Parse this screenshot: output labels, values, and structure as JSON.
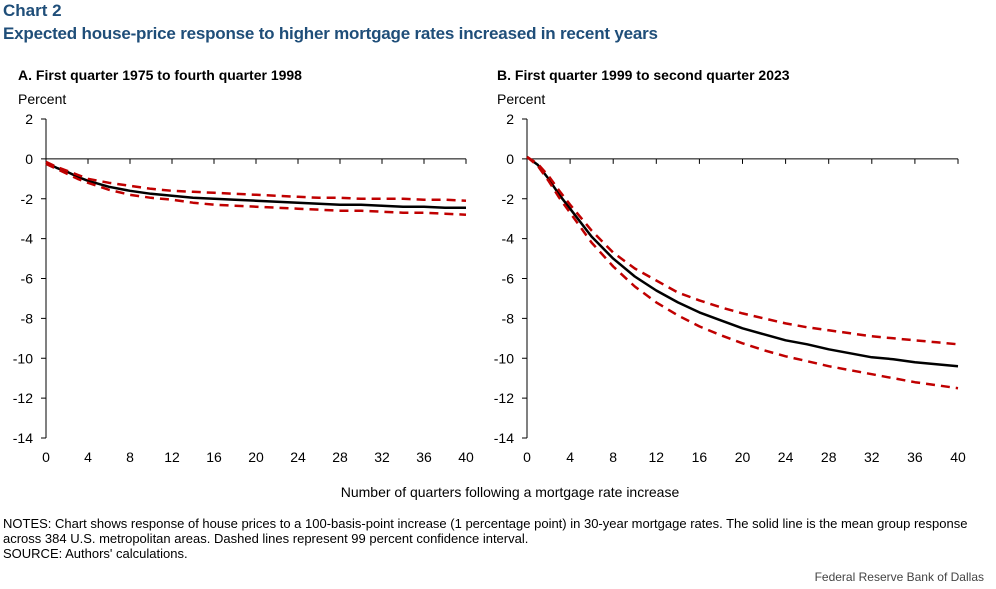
{
  "header": {
    "label": "Chart 2",
    "title": "Expected house-price response to higher mortgage rates increased in recent years"
  },
  "footer": {
    "notes": "NOTES: Chart shows response of house prices to a 100-basis-point increase (1 percentage point) in 30-year mortgage rates. The solid line is the mean group response across 384 U.S. metropolitan areas. Dashed lines represent 99 percent confidence interval.",
    "source": "SOURCE: Authors' calculations.",
    "credit": "Federal Reserve Bank of Dallas"
  },
  "shared_xlabel": "Number of quarters following a mortgage rate increase",
  "colors": {
    "mean": "#000000",
    "ci": "#c00000",
    "title": "#1f4e79"
  },
  "chart_data": [
    {
      "type": "line",
      "title": "A. First quarter 1975 to fourth quarter 1998",
      "ylabel": "Percent",
      "xlabel": "",
      "xlim": [
        0,
        40
      ],
      "ylim": [
        -14,
        2
      ],
      "xticks": [
        0,
        4,
        8,
        12,
        16,
        20,
        24,
        28,
        32,
        36,
        40
      ],
      "yticks": [
        2,
        0,
        -2,
        -4,
        -6,
        -8,
        -10,
        -12,
        -14
      ],
      "grid": false,
      "x": [
        0,
        1,
        2,
        3,
        4,
        6,
        8,
        10,
        12,
        14,
        16,
        18,
        20,
        22,
        24,
        26,
        28,
        30,
        32,
        34,
        36,
        38,
        40
      ],
      "series": [
        {
          "role": "mean",
          "style": "solid",
          "values": [
            -0.2,
            -0.45,
            -0.65,
            -0.9,
            -1.1,
            -1.4,
            -1.6,
            -1.75,
            -1.85,
            -1.95,
            -2.0,
            -2.05,
            -2.1,
            -2.15,
            -2.2,
            -2.25,
            -2.3,
            -2.3,
            -2.35,
            -2.4,
            -2.4,
            -2.45,
            -2.45
          ]
        },
        {
          "role": "upper",
          "style": "dashed",
          "values": [
            -0.15,
            -0.4,
            -0.6,
            -0.8,
            -1.0,
            -1.2,
            -1.35,
            -1.5,
            -1.6,
            -1.65,
            -1.7,
            -1.75,
            -1.8,
            -1.85,
            -1.9,
            -1.95,
            -1.95,
            -2.0,
            -2.0,
            -2.0,
            -2.05,
            -2.05,
            -2.1
          ]
        },
        {
          "role": "lower",
          "style": "dashed",
          "values": [
            -0.25,
            -0.5,
            -0.75,
            -1.0,
            -1.2,
            -1.55,
            -1.8,
            -1.95,
            -2.05,
            -2.2,
            -2.3,
            -2.35,
            -2.4,
            -2.45,
            -2.5,
            -2.55,
            -2.6,
            -2.6,
            -2.65,
            -2.7,
            -2.7,
            -2.75,
            -2.8
          ]
        }
      ]
    },
    {
      "type": "line",
      "title": "B. First quarter 1999 to second quarter 2023",
      "ylabel": "Percent",
      "xlabel": "",
      "xlim": [
        0,
        40
      ],
      "ylim": [
        -14,
        2
      ],
      "xticks": [
        0,
        4,
        8,
        12,
        16,
        20,
        24,
        28,
        32,
        36,
        40
      ],
      "yticks": [
        2,
        0,
        -2,
        -4,
        -6,
        -8,
        -10,
        -12,
        -14
      ],
      "grid": false,
      "x": [
        0,
        1,
        2,
        3,
        4,
        6,
        8,
        10,
        12,
        14,
        16,
        18,
        20,
        22,
        24,
        26,
        28,
        30,
        32,
        34,
        36,
        38,
        40
      ],
      "series": [
        {
          "role": "mean",
          "style": "solid",
          "values": [
            0.1,
            -0.3,
            -1.0,
            -1.8,
            -2.5,
            -3.9,
            -5.0,
            -5.9,
            -6.6,
            -7.2,
            -7.7,
            -8.1,
            -8.5,
            -8.8,
            -9.1,
            -9.3,
            -9.55,
            -9.75,
            -9.95,
            -10.05,
            -10.2,
            -10.3,
            -10.4
          ]
        },
        {
          "role": "upper",
          "style": "dashed",
          "values": [
            0.1,
            -0.25,
            -0.85,
            -1.6,
            -2.3,
            -3.6,
            -4.7,
            -5.5,
            -6.1,
            -6.7,
            -7.1,
            -7.45,
            -7.75,
            -8.0,
            -8.25,
            -8.45,
            -8.6,
            -8.75,
            -8.9,
            -9.0,
            -9.1,
            -9.2,
            -9.3
          ]
        },
        {
          "role": "lower",
          "style": "dashed",
          "values": [
            0.1,
            -0.35,
            -1.1,
            -1.95,
            -2.7,
            -4.2,
            -5.4,
            -6.4,
            -7.2,
            -7.85,
            -8.4,
            -8.85,
            -9.25,
            -9.6,
            -9.9,
            -10.15,
            -10.4,
            -10.6,
            -10.8,
            -11.0,
            -11.2,
            -11.35,
            -11.5
          ]
        }
      ]
    }
  ]
}
